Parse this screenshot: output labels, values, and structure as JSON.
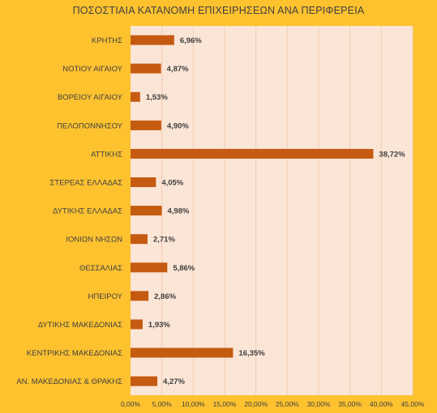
{
  "chart_data": {
    "type": "bar",
    "orientation": "horizontal",
    "title": "ΠΟΣΟΣΤΙΑΙΑ ΚΑΤΑΝΟΜΗ ΕΠΙΧΕΙΡΗΣΕΩΝ ΑΝΑ ΠΕΡΙΦΕΡΕΙΑ",
    "categories": [
      "ΚΡΗΤΗΣ",
      "ΝΟΤΙΟΥ ΑΙΓΑΙΟΥ",
      "ΒΟΡΕΙΟΥ ΑΙΓΑΙΟΥ",
      "ΠΕΛΟΠΟΝΝΗΣΟΥ",
      "ΑΤΤΙΚΗΣ",
      "ΣΤΕΡΕΑΣ ΕΛΛΑΔΑΣ",
      "ΔΥΤΙΚΗΣ ΕΛΛΑΔΑΣ",
      "ΙΟΝΙΩΝ ΝΗΣΩΝ",
      "ΘΕΣΣΑΛΙΑΣ",
      "ΗΠΕΙΡΟΥ",
      "ΔΥΤΙΚΗΣ ΜΑΚΕΔΟΝΙΑΣ",
      "ΚΕΝΤΡΙΚΗΣ ΜΑΚΕΔΟΝΙΑΣ",
      "ΑΝ. ΜΑΚΕΔΟΝΙΑΣ & ΘΡΑΚΗΣ"
    ],
    "values": [
      6.96,
      4.87,
      1.53,
      4.9,
      38.72,
      4.05,
      4.98,
      2.71,
      5.86,
      2.86,
      1.93,
      16.35,
      4.27
    ],
    "value_labels": [
      "6,96%",
      "4,87%",
      "1,53%",
      "4,90%",
      "38,72%",
      "4,05%",
      "4,98%",
      "2,71%",
      "5,86%",
      "2,86%",
      "1,93%",
      "16,35%",
      "4,27%"
    ],
    "x_ticks": [
      "0,00%",
      "5,00%",
      "10,00%",
      "15,00%",
      "20,00%",
      "25,00%",
      "30,00%",
      "35,00%",
      "40,00%",
      "45,00%"
    ],
    "xlim": [
      0,
      45
    ],
    "xlabel": "",
    "ylabel": "",
    "grid": "vertical",
    "legend": "none",
    "colors": {
      "background": "#FEC22F",
      "plot_area": "#FBE5D6",
      "bar": "#C55A11",
      "text": "#404040",
      "grid": "#F3CDB0"
    }
  }
}
